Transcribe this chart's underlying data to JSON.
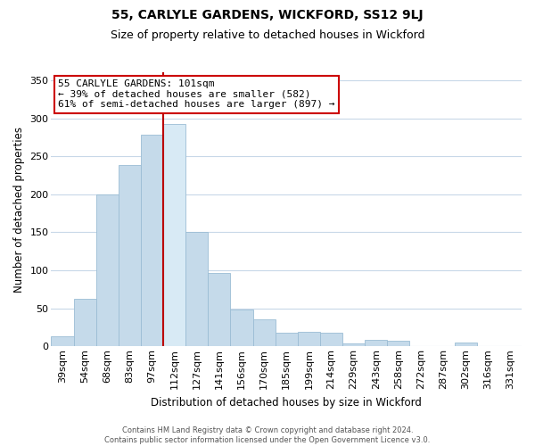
{
  "title": "55, CARLYLE GARDENS, WICKFORD, SS12 9LJ",
  "subtitle": "Size of property relative to detached houses in Wickford",
  "xlabel": "Distribution of detached houses by size in Wickford",
  "ylabel": "Number of detached properties",
  "categories": [
    "39sqm",
    "54sqm",
    "68sqm",
    "83sqm",
    "97sqm",
    "112sqm",
    "127sqm",
    "141sqm",
    "156sqm",
    "170sqm",
    "185sqm",
    "199sqm",
    "214sqm",
    "229sqm",
    "243sqm",
    "258sqm",
    "272sqm",
    "287sqm",
    "302sqm",
    "316sqm",
    "331sqm"
  ],
  "values": [
    13,
    63,
    200,
    238,
    278,
    293,
    150,
    97,
    48,
    35,
    18,
    19,
    18,
    4,
    8,
    7,
    0,
    0,
    5,
    0,
    0
  ],
  "bar_color": "#c5daea",
  "bar_edge_color": "#9bbdd4",
  "highlight_bar_index": 5,
  "highlight_bar_color": "#d8eaf5",
  "vline_x": 4.5,
  "ylim": [
    0,
    360
  ],
  "yticks": [
    0,
    50,
    100,
    150,
    200,
    250,
    300,
    350
  ],
  "annotation_title": "55 CARLYLE GARDENS: 101sqm",
  "annotation_line1": "← 39% of detached houses are smaller (582)",
  "annotation_line2": "61% of semi-detached houses are larger (897) →",
  "annotation_box_facecolor": "#ffffff",
  "annotation_box_edgecolor": "#cc0000",
  "footer_line1": "Contains HM Land Registry data © Crown copyright and database right 2024.",
  "footer_line2": "Contains public sector information licensed under the Open Government Licence v3.0.",
  "background_color": "#ffffff",
  "grid_color": "#c8d8e8",
  "vline_color": "#bb0000",
  "title_fontsize": 10,
  "subtitle_fontsize": 9,
  "xlabel_fontsize": 8.5,
  "ylabel_fontsize": 8.5,
  "tick_fontsize": 8,
  "annotation_fontsize": 8,
  "footer_fontsize": 6
}
